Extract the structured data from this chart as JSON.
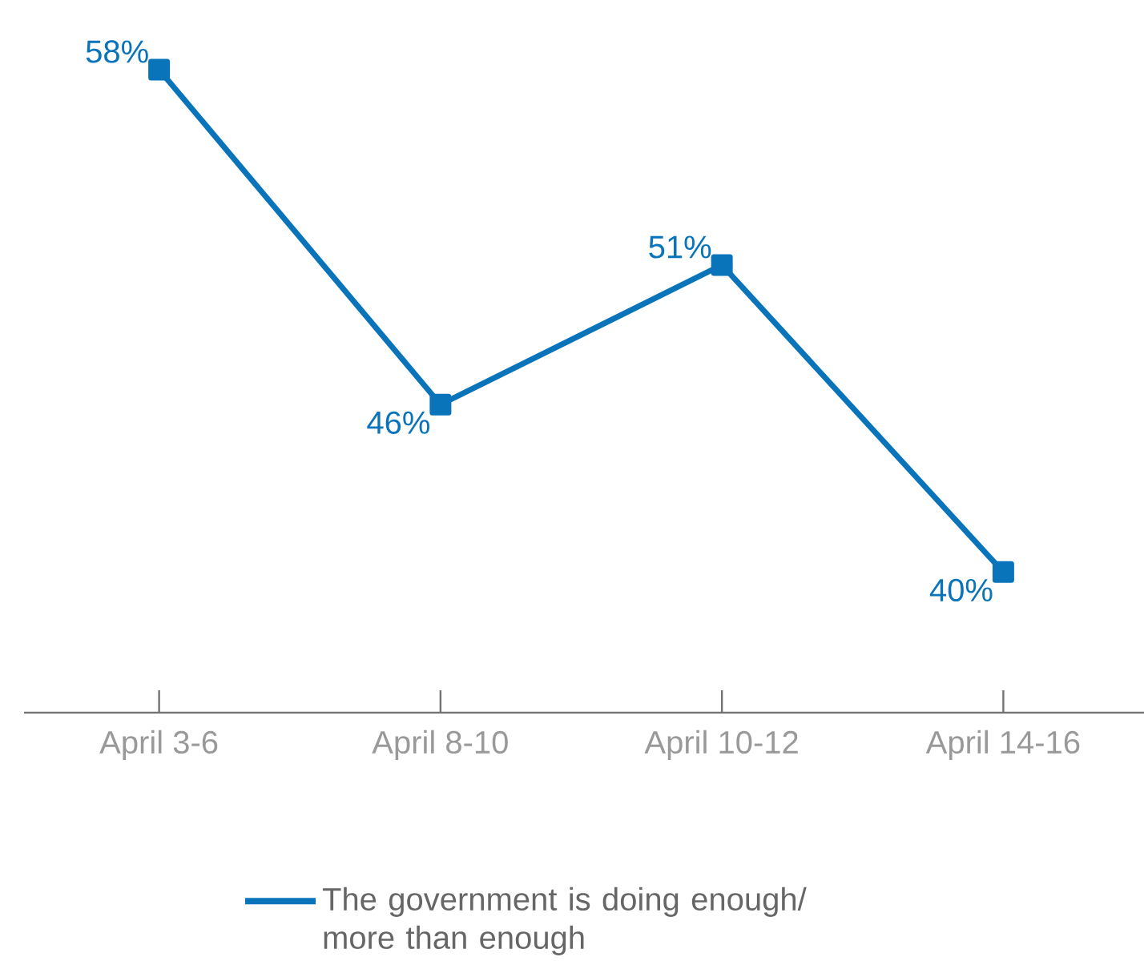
{
  "chart_data": {
    "type": "line",
    "categories": [
      "April 3-6",
      "April 8-10",
      "April 10-12",
      "April 14-16"
    ],
    "series": [
      {
        "name": "The government is doing enough/ more than enough",
        "color": "#0a74bb",
        "values": [
          58,
          46,
          51,
          40
        ],
        "value_labels": [
          "58%",
          "46%",
          "51%",
          "40%"
        ]
      }
    ],
    "tick_labels": "x",
    "marker": "square",
    "line_style": "solid",
    "grid": false,
    "legend": "bottom"
  }
}
